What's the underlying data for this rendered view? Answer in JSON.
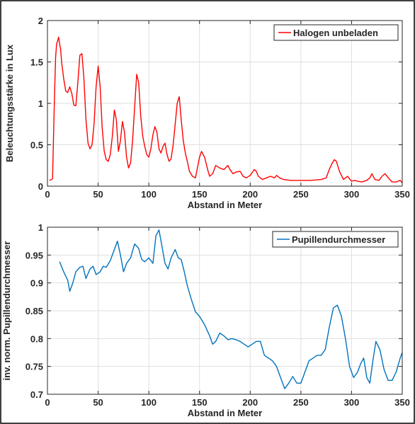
{
  "chart_data": [
    {
      "type": "line",
      "title": "",
      "xlabel": "Abstand in Meter",
      "ylabel": "Beleuchtungsstärke in Lux",
      "xlim": [
        0,
        350
      ],
      "ylim": [
        0,
        2
      ],
      "xticks": [
        0,
        50,
        100,
        150,
        200,
        250,
        300,
        350
      ],
      "yticks": [
        0,
        0.5,
        1,
        1.5,
        2
      ],
      "xtick_labels": [
        "0",
        "50",
        "100",
        "150",
        "200",
        "250",
        "300",
        "350"
      ],
      "ytick_labels": [
        "0",
        "0.5",
        "1",
        "1.5",
        "2"
      ],
      "grid": true,
      "legend_position": "top-right",
      "series": [
        {
          "name": "Halogen unbeladen",
          "color": "#ff0000",
          "x": [
            2,
            4,
            5,
            6,
            7,
            8,
            9,
            10,
            11,
            12,
            13,
            14,
            16,
            18,
            20,
            22,
            24,
            26,
            28,
            30,
            32,
            34,
            36,
            38,
            40,
            42,
            44,
            46,
            48,
            50,
            52,
            54,
            56,
            58,
            60,
            62,
            64,
            66,
            68,
            70,
            72,
            74,
            76,
            78,
            80,
            82,
            84,
            86,
            88,
            90,
            92,
            94,
            96,
            98,
            100,
            102,
            104,
            106,
            108,
            110,
            112,
            114,
            116,
            118,
            120,
            122,
            124,
            126,
            128,
            130,
            132,
            134,
            136,
            138,
            140,
            143,
            146,
            150,
            152,
            155,
            158,
            160,
            163,
            166,
            170,
            174,
            178,
            180,
            183,
            186,
            190,
            193,
            196,
            200,
            204,
            206,
            208,
            212,
            216,
            220,
            224,
            226,
            229,
            233,
            240,
            250,
            260,
            270,
            275,
            278,
            281,
            283,
            285,
            288,
            292,
            296,
            300,
            303,
            306,
            310,
            315,
            318,
            320,
            323,
            327,
            330,
            333,
            337,
            340,
            344,
            348,
            350
          ],
          "y": [
            0.07,
            0.08,
            0.09,
            0.6,
            1.1,
            1.55,
            1.72,
            1.75,
            1.8,
            1.72,
            1.65,
            1.5,
            1.3,
            1.15,
            1.13,
            1.2,
            1.12,
            0.98,
            0.97,
            1.25,
            1.58,
            1.6,
            1.3,
            0.8,
            0.52,
            0.45,
            0.5,
            0.75,
            1.2,
            1.45,
            1.2,
            0.7,
            0.42,
            0.32,
            0.3,
            0.38,
            0.6,
            0.92,
            0.8,
            0.42,
            0.55,
            0.78,
            0.65,
            0.35,
            0.22,
            0.28,
            0.55,
            0.95,
            1.35,
            1.25,
            0.85,
            0.6,
            0.48,
            0.38,
            0.35,
            0.45,
            0.62,
            0.72,
            0.65,
            0.45,
            0.4,
            0.48,
            0.52,
            0.38,
            0.3,
            0.33,
            0.5,
            0.75,
            1.0,
            1.08,
            0.8,
            0.55,
            0.4,
            0.3,
            0.18,
            0.12,
            0.1,
            0.35,
            0.42,
            0.35,
            0.2,
            0.12,
            0.15,
            0.25,
            0.22,
            0.2,
            0.25,
            0.2,
            0.15,
            0.17,
            0.18,
            0.12,
            0.1,
            0.13,
            0.2,
            0.18,
            0.12,
            0.08,
            0.1,
            0.12,
            0.1,
            0.13,
            0.1,
            0.08,
            0.07,
            0.07,
            0.07,
            0.08,
            0.1,
            0.2,
            0.28,
            0.32,
            0.3,
            0.18,
            0.08,
            0.12,
            0.06,
            0.07,
            0.06,
            0.05,
            0.07,
            0.1,
            0.15,
            0.08,
            0.07,
            0.12,
            0.15,
            0.09,
            0.05,
            0.05,
            0.07,
            0.04
          ]
        }
      ]
    },
    {
      "type": "line",
      "title": "",
      "xlabel": "Abstand in Meter",
      "ylabel": "inv. norm. Pupillendurchmesser",
      "xlim": [
        0,
        350
      ],
      "ylim": [
        0.7,
        1
      ],
      "xticks": [
        0,
        50,
        100,
        150,
        200,
        250,
        300,
        350
      ],
      "yticks": [
        0.7,
        0.75,
        0.8,
        0.85,
        0.9,
        0.95,
        1
      ],
      "xtick_labels": [
        "0",
        "50",
        "100",
        "150",
        "200",
        "250",
        "300",
        "350"
      ],
      "ytick_labels": [
        "0.7",
        "0.75",
        "0.8",
        "0.85",
        "0.9",
        "0.95",
        "1"
      ],
      "grid": true,
      "legend_position": "top-right",
      "series": [
        {
          "name": "Pupillendurchmesser",
          "color": "#0072bd",
          "x": [
            12,
            16,
            20,
            22,
            25,
            28,
            32,
            35,
            38,
            42,
            45,
            48,
            52,
            55,
            58,
            62,
            66,
            69,
            72,
            75,
            78,
            82,
            86,
            90,
            93,
            96,
            100,
            104,
            107,
            110,
            113,
            116,
            119,
            122,
            126,
            129,
            132,
            135,
            138,
            142,
            146,
            150,
            155,
            160,
            163,
            166,
            170,
            174,
            178,
            182,
            186,
            190,
            194,
            198,
            202,
            206,
            210,
            214,
            218,
            222,
            226,
            230,
            234,
            238,
            242,
            246,
            250,
            254,
            258,
            262,
            266,
            270,
            274,
            278,
            282,
            286,
            290,
            294,
            298,
            302,
            306,
            309,
            312,
            315,
            318,
            321,
            324,
            328,
            332,
            336,
            340,
            344,
            348,
            350
          ],
          "y": [
            0.938,
            0.92,
            0.905,
            0.885,
            0.9,
            0.92,
            0.928,
            0.93,
            0.908,
            0.925,
            0.93,
            0.915,
            0.92,
            0.93,
            0.928,
            0.94,
            0.96,
            0.975,
            0.95,
            0.92,
            0.935,
            0.945,
            0.97,
            0.962,
            0.942,
            0.938,
            0.945,
            0.935,
            0.985,
            0.995,
            0.965,
            0.935,
            0.925,
            0.945,
            0.96,
            0.945,
            0.942,
            0.92,
            0.895,
            0.87,
            0.848,
            0.84,
            0.825,
            0.805,
            0.79,
            0.795,
            0.81,
            0.805,
            0.798,
            0.8,
            0.798,
            0.795,
            0.79,
            0.785,
            0.79,
            0.795,
            0.795,
            0.77,
            0.765,
            0.76,
            0.75,
            0.73,
            0.71,
            0.72,
            0.732,
            0.72,
            0.72,
            0.74,
            0.76,
            0.765,
            0.77,
            0.77,
            0.78,
            0.82,
            0.855,
            0.86,
            0.84,
            0.8,
            0.75,
            0.73,
            0.74,
            0.755,
            0.765,
            0.73,
            0.72,
            0.76,
            0.795,
            0.78,
            0.745,
            0.725,
            0.725,
            0.74,
            0.765,
            0.775
          ]
        }
      ]
    }
  ]
}
